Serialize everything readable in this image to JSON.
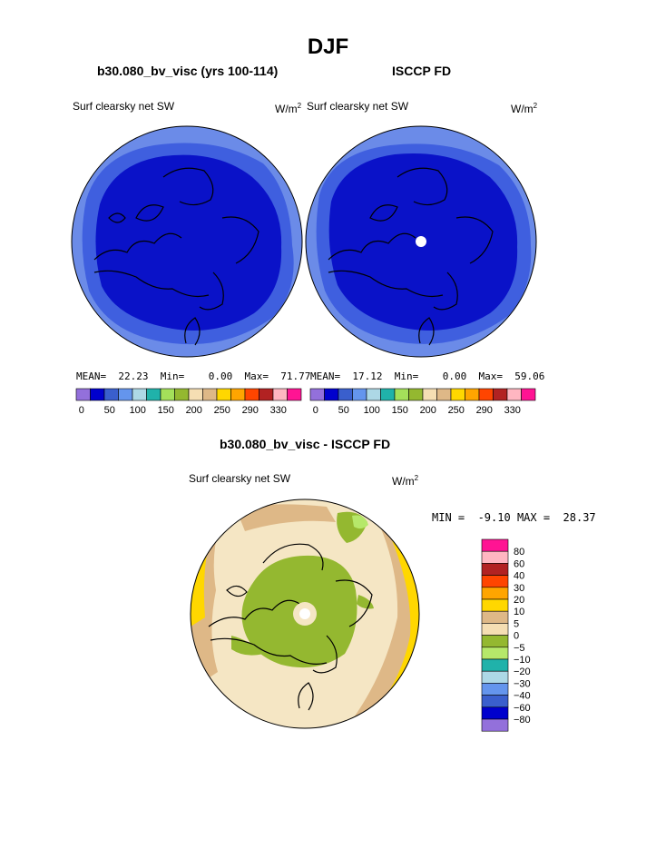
{
  "chart_data": [
    {
      "type": "heatmap",
      "projection": "north-polar-stereographic",
      "season": "DJF",
      "title": "b30.080_bv_visc (yrs 100-114)",
      "variable": "Surf clearsky net SW",
      "units": "W/m",
      "units_exp": "2",
      "stats": {
        "mean_label": "MEAN=",
        "mean": "22.23",
        "min_label": "Min=",
        "min": "0.00",
        "max_label": "Max=",
        "max": "71.77"
      },
      "colorbar": {
        "colors": [
          "#9370db",
          "#0000cd",
          "#3a5fcd",
          "#6495ed",
          "#add8e6",
          "#20b2aa",
          "#a4e05a",
          "#94b830",
          "#f5deb3",
          "#deb887",
          "#ffd700",
          "#ffa500",
          "#ff4500",
          "#b22222",
          "#ffb6c1",
          "#ff1493"
        ],
        "tick_labels": [
          "0",
          "50",
          "100",
          "150",
          "200",
          "250",
          "290",
          "330"
        ]
      },
      "regions": [
        {
          "name": "Outer light ring",
          "value_range": "50-100",
          "color": "#6b8be8"
        },
        {
          "name": "Mid ring",
          "value_range": "25-50",
          "color": "#3f5fdf"
        },
        {
          "name": "Polar cap",
          "value_range": "0-25",
          "color": "#0a12c8"
        }
      ]
    },
    {
      "type": "heatmap",
      "projection": "north-polar-stereographic",
      "title": "ISCCP FD",
      "variable": "Surf clearsky net SW",
      "units": "W/m",
      "units_exp": "2",
      "stats": {
        "mean_label": "MEAN=",
        "mean": "17.12",
        "min_label": "Min=",
        "min": "0.00",
        "max_label": "Max=",
        "max": "59.06"
      },
      "colorbar": {
        "colors": [
          "#9370db",
          "#0000cd",
          "#3a5fcd",
          "#6495ed",
          "#add8e6",
          "#20b2aa",
          "#a4e05a",
          "#94b830",
          "#f5deb3",
          "#deb887",
          "#ffd700",
          "#ffa500",
          "#ff4500",
          "#b22222",
          "#ffb6c1",
          "#ff1493"
        ],
        "tick_labels": [
          "0",
          "50",
          "100",
          "150",
          "200",
          "250",
          "290",
          "330"
        ]
      },
      "missing_pole": true
    },
    {
      "type": "heatmap",
      "projection": "north-polar-stereographic",
      "title": "b30.080_bv_visc - ISCCP FD",
      "variable": "Surf clearsky net SW",
      "units": "W/m",
      "units_exp": "2",
      "stats": {
        "min_label": "MIN =",
        "min": "-9.10",
        "max_label": "MAX =",
        "max": "28.37"
      },
      "colorbar": {
        "colors": [
          "#ff1493",
          "#ffb6c1",
          "#b22222",
          "#ff4500",
          "#ffa500",
          "#ffd700",
          "#deb887",
          "#f5deb3",
          "#94b830",
          "#b6e86a",
          "#20b2aa",
          "#add8e6",
          "#6495ed",
          "#3a5fcd",
          "#0000cd",
          "#9370db"
        ],
        "tick_labels": [
          "80",
          "60",
          "40",
          "30",
          "20",
          "10",
          "5",
          "0",
          "−5",
          "−10",
          "−20",
          "−30",
          "−40",
          "−60",
          "−80"
        ]
      },
      "missing_pole": true
    }
  ]
}
